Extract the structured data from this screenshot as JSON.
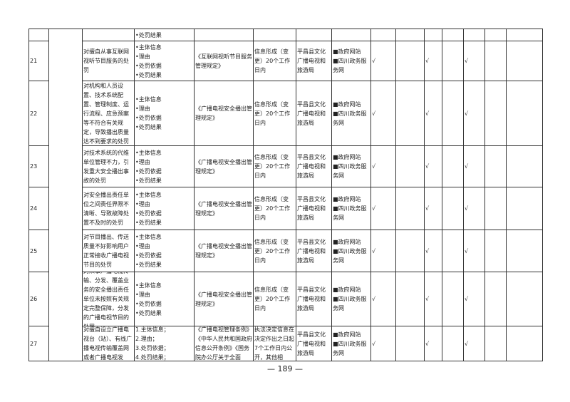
{
  "table": {
    "rows": [
      {
        "content": [
          "•处罚结果"
        ]
      },
      {
        "no": "21",
        "item": "对擅自从事互联网视听节目服务的处罚",
        "content": [
          "•主体信息",
          "•理由",
          "•处罚依据",
          "•处罚结果"
        ],
        "basis": "《互联网视听节目服务管理规定》",
        "time": "信息形成（变更）20个工作日内",
        "subject": "平昌县文化广播电视和旅游局",
        "channel": [
          "■政府网站",
          "■四川政务服务网"
        ],
        "check_a": "√",
        "check_b": "√",
        "check_c": "√"
      },
      {
        "no": "22",
        "item": "对机构和人员设置、技术系统配置、管理制度、运行流程、应急预案等不符合有关规定，导致播出质量达不到要求的处罚",
        "content": [
          "•主体信息",
          "•理由",
          "•处罚依据",
          "•处罚结果"
        ],
        "basis": "《广播电视安全播出管理规定》",
        "time": "信息形成（变更）20个工作日内",
        "subject": "平昌县文化广播电视和旅游局",
        "channel": [
          "■政府网站",
          "■四川政务服务网"
        ],
        "check_a": "√",
        "check_b": "√",
        "check_c": "√"
      },
      {
        "no": "23",
        "item": "对技术系统的代维单位管理不力，引发重大安全播出事故的处罚",
        "content": [
          "•主体信息",
          "•理由",
          "•处罚依据",
          "•处罚结果"
        ],
        "basis": "《广播电视安全播出管理规定》",
        "time": "信息形成（变更）20个工作日内",
        "subject": "平昌县文化广播电视和旅游局",
        "channel": [
          "■政府网站",
          "■四川政务服务网"
        ],
        "check_a": "√",
        "check_b": "√",
        "check_c": "√"
      },
      {
        "no": "24",
        "item": "对安全播出责任单位之间责任界限不清晰、导致故障处置不及时的处罚",
        "content": [
          "•主体信息",
          "•理由",
          "•处罚依据",
          "•处罚结果"
        ],
        "basis": "《广播电视安全播出管理规定》",
        "time": "信息形成（变更）20个工作日内",
        "subject": "平昌县文化广播电视和旅游局",
        "channel": [
          "■政府网站",
          "■四川政务服务网"
        ],
        "check_a": "√",
        "check_b": "√",
        "check_c": "√"
      },
      {
        "no": "25",
        "item": "对节目播出、传送质量不好影响用户正常接收广播电视节目的处罚",
        "content": [
          "•主体信息",
          "•理由",
          "•处罚依据",
          "•处罚结果"
        ],
        "basis": "《广播电视安全播出管理规定》",
        "time": "信息形成（变更）20个工作日内",
        "subject": "平昌县文化广播电视和旅游局",
        "channel": [
          "■政府网站",
          "■四川政务服务网"
        ],
        "check_a": "√",
        "check_b": "√",
        "check_c": "√"
      },
      {
        "no": "26",
        "item": "对从事广播电视传输、分发、覆盖业务的安全播出责任单位未按照有关规定完整保障，分发的广播电视节目的处罚",
        "content": [
          "•主体信息",
          "•理由",
          "•处罚依据",
          "•处罚结果"
        ],
        "basis": "《广播电视安全播出管理规定》",
        "time": "信息形成（变更）20个工作日内",
        "subject": "平昌县文化广播电视和旅游局",
        "channel": [
          "■政府网站",
          "■四川政务服务网"
        ],
        "check_a": "√",
        "check_b": "√",
        "check_c": "√"
      },
      {
        "no": "27",
        "item": "对擅自设立广播电视台（站）、有线广播电视传输覆盖网或者广播电视发",
        "content": [
          "1.主体信息；",
          "2.理由；",
          "3.处罚依据；",
          "4.处罚结果；"
        ],
        "basis": "《广播电视管理条例》《中华人民共和国政府信息公开条例》《国务院办公厅关于全面",
        "time": "执法决定信息在决定作出之日起7个工作日内公开，其他相",
        "subject": "平昌县文化广播电视和旅游局",
        "channel": [
          "■政府网站",
          "■四川政务服务网"
        ],
        "check_a": "√",
        "check_b": "√",
        "check_c": "√"
      }
    ]
  },
  "footer": {
    "page_number": "— 189 —"
  }
}
